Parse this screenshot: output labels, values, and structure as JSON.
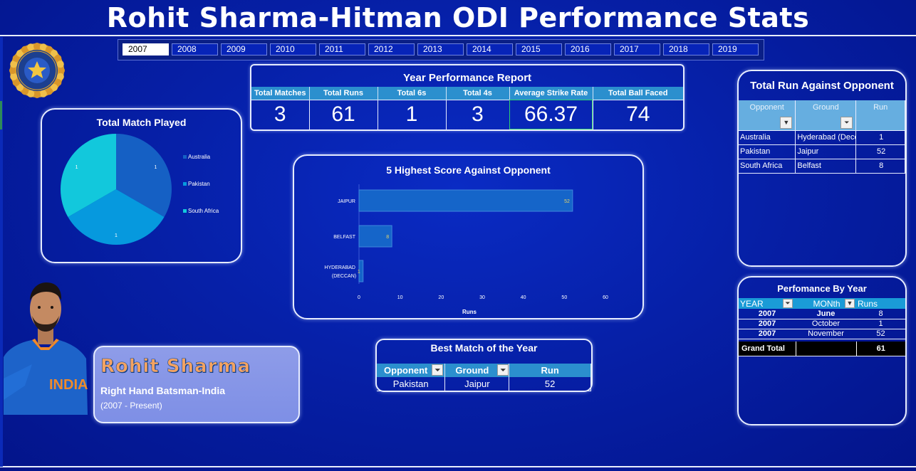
{
  "header": {
    "title": "Rohit Sharma-Hitman ODI  Performance Stats"
  },
  "year_slicer": {
    "selected": "2007",
    "years": [
      "2007",
      "2008",
      "2009",
      "2010",
      "2011",
      "2012",
      "2013",
      "2014",
      "2015",
      "2016",
      "2017",
      "2018",
      "2019"
    ]
  },
  "kpi": {
    "title": "Year Performance Report",
    "headers": [
      "Total Matches",
      "Total Runs",
      "Total 6s",
      "Total 4s",
      "Average Strike Rate",
      "Total Ball Faced"
    ],
    "values": [
      "3",
      "61",
      "1",
      "3",
      "66.37",
      "74"
    ]
  },
  "pie": {
    "title": "Total Match Played",
    "chart_data": {
      "type": "pie",
      "categories": [
        "Australia",
        "Pakistan",
        "South Africa"
      ],
      "values": [
        1,
        1,
        1
      ],
      "colors": [
        "#1560c4",
        "#0699de",
        "#12c8dc"
      ],
      "legend": "right"
    }
  },
  "bar": {
    "title": "5 Highest Score Against Opponent",
    "chart_data": {
      "type": "bar",
      "orientation": "horizontal",
      "categories": [
        "JAIPUR",
        "BELFAST",
        "HYDERABAD (DECCAN)"
      ],
      "values": [
        52,
        8,
        1
      ],
      "xlabel": "Runs",
      "xlim": [
        0,
        60
      ],
      "xticks": [
        "0",
        "10",
        "20",
        "30",
        "40",
        "50",
        "60"
      ],
      "color": "#1565c9"
    }
  },
  "opponent_table": {
    "title": "Total Run Against Opponent",
    "headers": [
      "Opponent",
      "Ground",
      "Run"
    ],
    "rows": [
      [
        "Australia",
        "Hyderabad (Deccan)",
        "1"
      ],
      [
        "Pakistan",
        "Jaipur",
        "52"
      ],
      [
        "South Africa",
        "Belfast",
        "8"
      ]
    ]
  },
  "perf_by_year": {
    "title": "Perfomance By Year",
    "headers": [
      "YEAR",
      "MONth",
      "Runs"
    ],
    "rows": [
      [
        "2007",
        "June",
        "8"
      ],
      [
        "2007",
        "October",
        "1"
      ],
      [
        "2007",
        "November",
        "52"
      ]
    ],
    "grand_total_label": "Grand Total",
    "grand_total_value": "61"
  },
  "best_match": {
    "title": "Best Match of the Year",
    "headers": [
      "Opponent",
      "Ground",
      "Run"
    ],
    "row": [
      "Pakistan",
      "Jaipur",
      "52"
    ]
  },
  "player": {
    "name": "Rohit Sharma",
    "role": "Right Hand Batsman-India",
    "years": "(2007 - Present)"
  }
}
